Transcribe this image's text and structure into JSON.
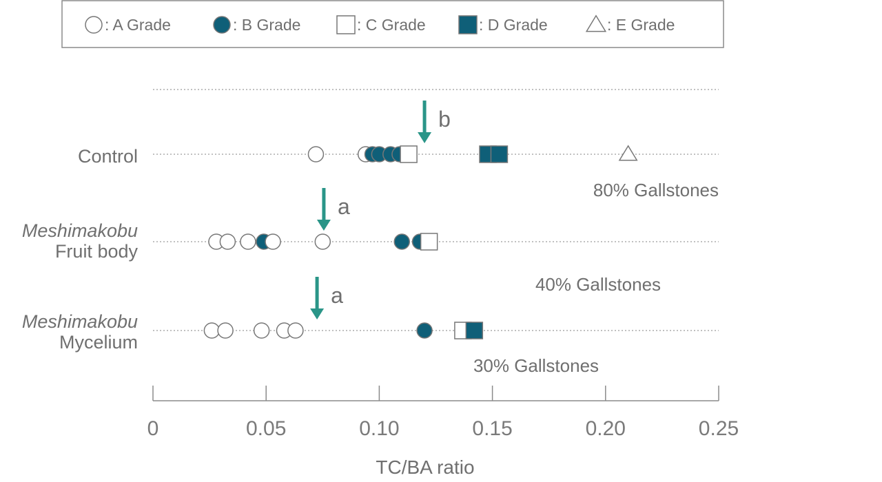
{
  "colors": {
    "filled": "#0f5f78",
    "outline": "#777777",
    "arrow": "#2a9588",
    "text": "#6f6f6f",
    "axis": "#8a8a8a"
  },
  "legend": [
    {
      "shape": "circle",
      "filled": false,
      "label": ": A Grade"
    },
    {
      "shape": "circle",
      "filled": true,
      "label": ": B Grade"
    },
    {
      "shape": "square",
      "filled": false,
      "label": ": C Grade"
    },
    {
      "shape": "square",
      "filled": true,
      "label": ": D Grade"
    },
    {
      "shape": "triangle",
      "filled": false,
      "label": ": E Grade"
    }
  ],
  "chart_data": {
    "type": "scatter",
    "xlabel": "TC/BA ratio",
    "xlim": [
      0,
      0.25
    ],
    "xticks": [
      0,
      0.05,
      0.1,
      0.15,
      0.2,
      0.25
    ],
    "xtick_labels": [
      "0",
      "0.05",
      "0.10",
      "0.15",
      "0.20",
      "0.25"
    ],
    "grid": "dotted line per group",
    "groups": [
      {
        "name": "Control",
        "label_lines": [
          {
            "text": "Control",
            "italic": false
          }
        ],
        "gallstone_label": "80% Gallstones",
        "mean_arrow": {
          "x": 0.12,
          "letter": "b"
        },
        "points": [
          {
            "x": 0.072,
            "grade": "A"
          },
          {
            "x": 0.094,
            "grade": "A"
          },
          {
            "x": 0.097,
            "grade": "B"
          },
          {
            "x": 0.1,
            "grade": "B"
          },
          {
            "x": 0.105,
            "grade": "B"
          },
          {
            "x": 0.109,
            "grade": "B"
          },
          {
            "x": 0.113,
            "grade": "C"
          },
          {
            "x": 0.148,
            "grade": "D"
          },
          {
            "x": 0.153,
            "grade": "D"
          },
          {
            "x": 0.21,
            "grade": "E"
          }
        ]
      },
      {
        "name": "Meshimakobu Fruit body",
        "label_lines": [
          {
            "text": "Meshimakobu",
            "italic": true
          },
          {
            "text": "Fruit body",
            "italic": false
          }
        ],
        "gallstone_label": "40% Gallstones",
        "mean_arrow": {
          "x": 0.0755,
          "letter": "a"
        },
        "points": [
          {
            "x": 0.028,
            "grade": "A"
          },
          {
            "x": 0.033,
            "grade": "A"
          },
          {
            "x": 0.042,
            "grade": "A"
          },
          {
            "x": 0.049,
            "grade": "B"
          },
          {
            "x": 0.053,
            "grade": "A"
          },
          {
            "x": 0.075,
            "grade": "A"
          },
          {
            "x": 0.11,
            "grade": "B"
          },
          {
            "x": 0.118,
            "grade": "B"
          },
          {
            "x": 0.122,
            "grade": "C"
          }
        ]
      },
      {
        "name": "Meshimakobu Mycelium",
        "label_lines": [
          {
            "text": "Meshimakobu",
            "italic": true
          },
          {
            "text": "Mycelium",
            "italic": false
          }
        ],
        "gallstone_label": "30% Gallstones",
        "mean_arrow": {
          "x": 0.0725,
          "letter": "a"
        },
        "points": [
          {
            "x": 0.026,
            "grade": "A"
          },
          {
            "x": 0.032,
            "grade": "A"
          },
          {
            "x": 0.048,
            "grade": "A"
          },
          {
            "x": 0.058,
            "grade": "A"
          },
          {
            "x": 0.063,
            "grade": "A"
          },
          {
            "x": 0.12,
            "grade": "B"
          },
          {
            "x": 0.137,
            "grade": "C"
          },
          {
            "x": 0.142,
            "grade": "D"
          }
        ]
      }
    ]
  }
}
